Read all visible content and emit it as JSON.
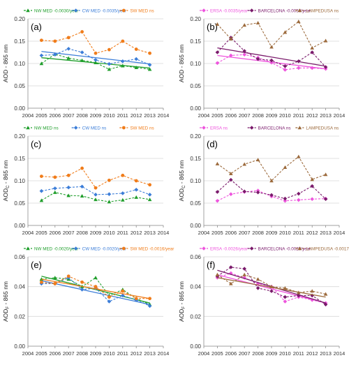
{
  "chart_data": [
    {
      "id": "a",
      "type": "line",
      "panel_label": "(a)",
      "ylabel": "AOD - 865 nm",
      "ylim": [
        0.0,
        0.2
      ],
      "yticks": [
        0.0,
        0.05,
        0.1,
        0.15,
        0.2
      ],
      "ytick_labels": [
        "0.00",
        "0.05",
        "0.10",
        "0.15",
        "0.20"
      ],
      "xlim": [
        2004,
        2014
      ],
      "xticks": [
        2004,
        2005,
        2006,
        2007,
        2008,
        2009,
        2010,
        2011,
        2012,
        2013,
        2014
      ],
      "x": [
        2005,
        2006,
        2007,
        2008,
        2009,
        2010,
        2011,
        2012,
        2013
      ],
      "legend": "top",
      "series": [
        {
          "name": "NW MED -0.0030/year",
          "color": "#1f9e2b",
          "marker": "triangle",
          "values": [
            0.1,
            0.121,
            0.112,
            0.107,
            0.102,
            0.087,
            0.095,
            0.091,
            0.087
          ],
          "trend": [
            0.113,
            0.09
          ]
        },
        {
          "name": "CW MED -0.0035/year",
          "color": "#3b7dd8",
          "marker": "diamond",
          "values": [
            0.118,
            0.12,
            0.133,
            0.125,
            0.108,
            0.099,
            0.105,
            0.11,
            0.097
          ],
          "trend": [
            0.127,
            0.099
          ]
        },
        {
          "name": "SW MED ns",
          "color": "#f07c1a",
          "marker": "circle",
          "values": [
            0.152,
            0.15,
            0.158,
            0.171,
            0.123,
            0.131,
            0.15,
            0.132,
            0.123
          ],
          "trend": null
        }
      ]
    },
    {
      "id": "b",
      "type": "line",
      "panel_label": "(b)",
      "ylabel": "AOD - 865 nm",
      "ylim": [
        0.0,
        0.2
      ],
      "yticks": [
        0.0,
        0.05,
        0.1,
        0.15,
        0.2
      ],
      "ytick_labels": [
        "0.00",
        "0.05",
        "0.10",
        "0.15",
        "0.20"
      ],
      "xlim": [
        2004,
        2014
      ],
      "xticks": [
        2004,
        2005,
        2006,
        2007,
        2008,
        2009,
        2010,
        2011,
        2012,
        2013,
        2014
      ],
      "x": [
        2005,
        2006,
        2007,
        2008,
        2009,
        2010,
        2011,
        2012,
        2013
      ],
      "legend": "top",
      "series": [
        {
          "name": "ERSA -0.0035/year",
          "color": "#ee55dd",
          "marker": "diamond",
          "values": [
            0.101,
            0.118,
            0.12,
            0.113,
            0.102,
            0.086,
            0.09,
            0.09,
            0.088
          ],
          "trend": [
            0.118,
            0.088
          ]
        },
        {
          "name": "BARCELONA -0.0050/year",
          "color": "#7a1a6b",
          "marker": "diamond",
          "values": [
            0.125,
            0.158,
            0.128,
            0.11,
            0.107,
            0.094,
            0.105,
            0.125,
            0.092
          ],
          "trend": [
            0.135,
            0.094
          ]
        },
        {
          "name": "LAMPEDUSA ns",
          "color": "#9c6a3c",
          "marker": "triangle",
          "values": [
            0.188,
            0.155,
            0.186,
            0.191,
            0.137,
            0.17,
            0.194,
            0.135,
            0.151
          ],
          "trend": null
        }
      ]
    },
    {
      "id": "c",
      "type": "line",
      "panel_label": "(c)",
      "ylabel": "AOD_C - 865 nm",
      "ylim": [
        0.0,
        0.2
      ],
      "yticks": [
        0.0,
        0.05,
        0.1,
        0.15,
        0.2
      ],
      "ytick_labels": [
        "0.00",
        "0.05",
        "0.10",
        "0.15",
        "0.20"
      ],
      "xlim": [
        2004,
        2014
      ],
      "xticks": [
        2004,
        2005,
        2006,
        2007,
        2008,
        2009,
        2010,
        2011,
        2012,
        2013,
        2014
      ],
      "x": [
        2005,
        2006,
        2007,
        2008,
        2009,
        2010,
        2011,
        2012,
        2013
      ],
      "legend": "top",
      "series": [
        {
          "name": "NW MED ns",
          "color": "#1f9e2b",
          "marker": "triangle",
          "values": [
            0.056,
            0.074,
            0.067,
            0.066,
            0.058,
            0.053,
            0.057,
            0.063,
            0.058
          ],
          "trend": null
        },
        {
          "name": "CW MED ns",
          "color": "#3b7dd8",
          "marker": "diamond",
          "values": [
            0.077,
            0.083,
            0.085,
            0.087,
            0.069,
            0.07,
            0.072,
            0.08,
            0.069
          ],
          "trend": null
        },
        {
          "name": "SW MED ns",
          "color": "#f07c1a",
          "marker": "circle",
          "values": [
            0.11,
            0.108,
            0.112,
            0.128,
            0.084,
            0.101,
            0.112,
            0.1,
            0.091
          ],
          "trend": null
        }
      ]
    },
    {
      "id": "d",
      "type": "line",
      "panel_label": "(d)",
      "ylabel": "AOD_C - 865 nm",
      "ylim": [
        0.0,
        0.2
      ],
      "yticks": [
        0.0,
        0.05,
        0.1,
        0.15,
        0.2
      ],
      "ytick_labels": [
        "0.00",
        "0.05",
        "0.10",
        "0.15",
        "0.20"
      ],
      "xlim": [
        2004,
        2014
      ],
      "xticks": [
        2004,
        2005,
        2006,
        2007,
        2008,
        2009,
        2010,
        2011,
        2012,
        2013,
        2014
      ],
      "x": [
        2005,
        2006,
        2007,
        2008,
        2009,
        2010,
        2011,
        2012,
        2013
      ],
      "legend": "top",
      "series": [
        {
          "name": "ERSA ns",
          "color": "#ee55dd",
          "marker": "diamond",
          "values": [
            0.055,
            0.07,
            0.075,
            0.078,
            0.065,
            0.055,
            0.057,
            0.059,
            0.06
          ],
          "trend": null
        },
        {
          "name": "BARCELONA ns",
          "color": "#7a1a6b",
          "marker": "diamond",
          "values": [
            0.075,
            0.102,
            0.076,
            0.074,
            0.068,
            0.06,
            0.071,
            0.088,
            0.059
          ],
          "trend": null
        },
        {
          "name": "LAMPEDUSA ns",
          "color": "#9c6a3c",
          "marker": "triangle",
          "values": [
            0.138,
            0.116,
            0.137,
            0.147,
            0.1,
            0.13,
            0.154,
            0.103,
            0.114
          ],
          "trend": null
        }
      ]
    },
    {
      "id": "e",
      "type": "line",
      "panel_label": "(e)",
      "ylabel": "AOD_F - 865 nm",
      "ylim": [
        0.0,
        0.06
      ],
      "yticks": [
        0.0,
        0.02,
        0.04,
        0.06
      ],
      "ytick_labels": [
        "0.00",
        "0.02",
        "0.04",
        "0.06"
      ],
      "xlim": [
        2004,
        2014
      ],
      "xticks": [
        2004,
        2005,
        2006,
        2007,
        2008,
        2009,
        2010,
        2011,
        2012,
        2013,
        2014
      ],
      "x": [
        2005,
        2006,
        2007,
        2008,
        2009,
        2010,
        2011,
        2012,
        2013
      ],
      "legend": "top",
      "series": [
        {
          "name": "NW MED -0.0020/year",
          "color": "#1f9e2b",
          "marker": "triangle",
          "values": [
            0.045,
            0.046,
            0.045,
            0.04,
            0.046,
            0.034,
            0.038,
            0.032,
            0.028
          ],
          "trend": [
            0.047,
            0.029
          ]
        },
        {
          "name": "CW MED -0.0020/year",
          "color": "#3b7dd8",
          "marker": "diamond",
          "values": [
            0.042,
            0.042,
            0.046,
            0.038,
            0.039,
            0.03,
            0.034,
            0.031,
            0.027
          ],
          "trend": [
            0.044,
            0.028
          ]
        },
        {
          "name": "SW MED -0.0016/year",
          "color": "#f07c1a",
          "marker": "circle",
          "values": [
            0.043,
            0.042,
            0.047,
            0.043,
            0.04,
            0.033,
            0.037,
            0.032,
            0.032
          ],
          "trend": [
            0.045,
            0.032
          ]
        }
      ]
    },
    {
      "id": "f",
      "type": "line",
      "panel_label": "(f)",
      "ylabel": "AOD_F - 865 nm",
      "ylim": [
        0.0,
        0.06
      ],
      "yticks": [
        0.0,
        0.02,
        0.04,
        0.06
      ],
      "ytick_labels": [
        "0.00",
        "0.02",
        "0.04",
        "0.06"
      ],
      "xlim": [
        2004,
        2014
      ],
      "xticks": [
        2004,
        2005,
        2006,
        2007,
        2008,
        2009,
        2010,
        2011,
        2012,
        2013,
        2014
      ],
      "x": [
        2005,
        2006,
        2007,
        2008,
        2009,
        2010,
        2011,
        2012,
        2013
      ],
      "legend": "top",
      "series": [
        {
          "name": "ERSA -0.0026/year",
          "color": "#ee55dd",
          "marker": "diamond",
          "values": [
            0.046,
            0.049,
            0.046,
            0.042,
            0.04,
            0.03,
            0.033,
            0.031,
            0.029
          ],
          "trend": [
            0.048,
            0.029
          ]
        },
        {
          "name": "BARCELONA -0.0029/year",
          "color": "#7a1a6b",
          "marker": "diamond",
          "values": [
            0.047,
            0.053,
            0.052,
            0.039,
            0.037,
            0.033,
            0.034,
            0.034,
            0.028
          ],
          "trend": [
            0.051,
            0.029
          ]
        },
        {
          "name": "LAMPEDUSA -0.0017/year",
          "color": "#9c6a3c",
          "marker": "triangle",
          "values": [
            0.048,
            0.042,
            0.048,
            0.045,
            0.04,
            0.039,
            0.036,
            0.037,
            0.035
          ],
          "trend": [
            0.046,
            0.033
          ]
        }
      ]
    }
  ]
}
